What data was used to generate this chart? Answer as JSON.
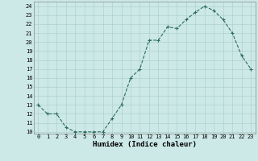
{
  "x": [
    0,
    1,
    2,
    3,
    4,
    5,
    6,
    7,
    8,
    9,
    10,
    11,
    12,
    13,
    14,
    15,
    16,
    17,
    18,
    19,
    20,
    21,
    22,
    23
  ],
  "y": [
    13,
    12,
    12,
    10.5,
    10,
    10,
    10,
    10,
    11.5,
    13,
    16,
    17,
    20.2,
    20.2,
    21.7,
    21.5,
    22.5,
    23.3,
    24,
    23.5,
    22.5,
    21,
    18.5,
    17
  ],
  "line_color": "#2e6b5e",
  "marker": "+",
  "marker_size": 3,
  "marker_edge_width": 0.8,
  "line_width": 0.8,
  "background_color": "#cce9e7",
  "grid_color": "#a8cbc9",
  "xlabel": "Humidex (Indice chaleur)",
  "xlim": [
    -0.5,
    23.5
  ],
  "ylim": [
    9.8,
    24.5
  ],
  "yticks": [
    10,
    11,
    12,
    13,
    14,
    15,
    16,
    17,
    18,
    19,
    20,
    21,
    22,
    23,
    24
  ],
  "xticks": [
    0,
    1,
    2,
    3,
    4,
    5,
    6,
    7,
    8,
    9,
    10,
    11,
    12,
    13,
    14,
    15,
    16,
    17,
    18,
    19,
    20,
    21,
    22,
    23
  ],
  "tick_fontsize": 5.0,
  "xlabel_fontsize": 6.5
}
